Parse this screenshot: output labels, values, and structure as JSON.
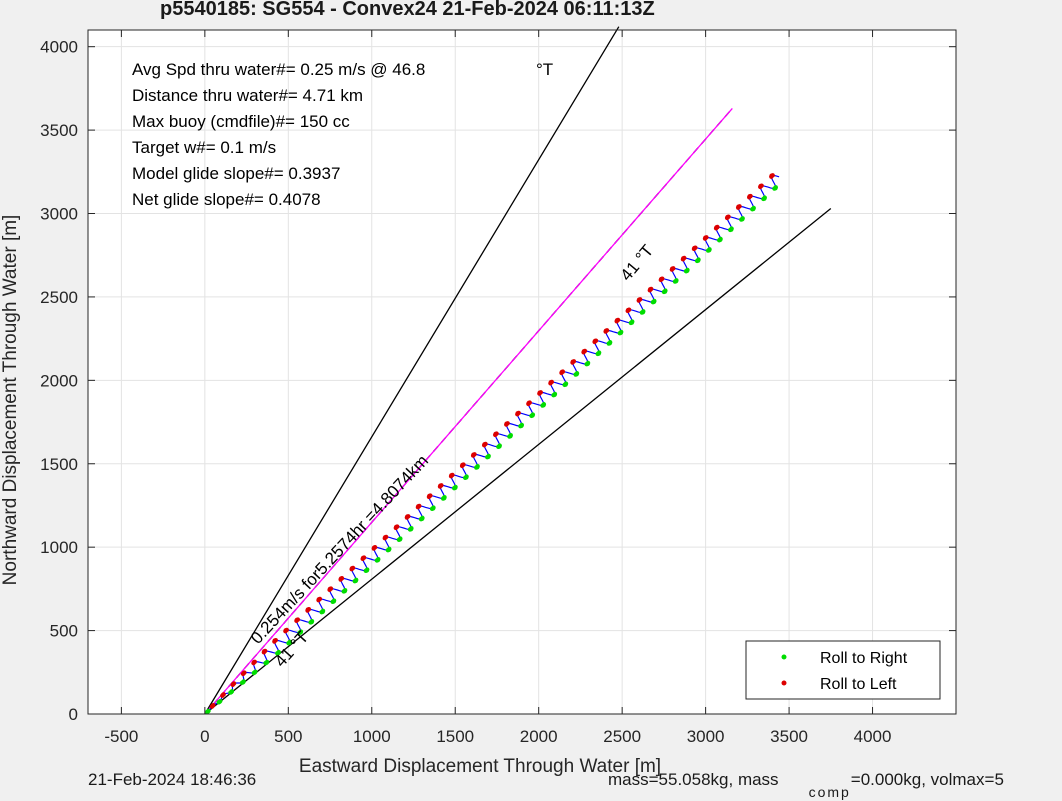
{
  "chart_data": {
    "type": "line",
    "title": "p5540185: SG554 - Convex24 21-Feb-2024 06:11:13Z",
    "xlabel": "Eastward Displacement Through Water [m]",
    "ylabel": "Northward Displacement Through Water [m]",
    "xlim": [
      -700,
      4500
    ],
    "ylim": [
      0,
      4100
    ],
    "xticks": [
      -500,
      0,
      500,
      1000,
      1500,
      2000,
      2500,
      3000,
      3500,
      4000
    ],
    "yticks": [
      0,
      500,
      1000,
      1500,
      2000,
      2500,
      3000,
      3500,
      4000
    ],
    "grid": true,
    "annotations": [
      "Avg Spd thru water#=  0.25 m/s @  46.8",
      "°T",
      "Distance thru water#=  4.71 km",
      "Max buoy (cmdfile)#= 150 cc",
      "Target w#= 0.1 m/s",
      "Model glide slope#= 0.3937",
      "Net glide slope#= 0.4078"
    ],
    "line_labels": [
      "0.254m/s for5.2574hr =4.8074km",
      "41 °T",
      "41 °T"
    ],
    "cone_lines": [
      {
        "x": [
          0,
          2480
        ],
        "y": [
          0,
          4120
        ]
      },
      {
        "x": [
          0,
          3750
        ],
        "y": [
          0,
          3030
        ]
      }
    ],
    "heading_line": {
      "color": "#ff00ff",
      "x": [
        0,
        3160
      ],
      "y": [
        0,
        3630
      ]
    },
    "track": {
      "name": "track",
      "color": "#0000ff",
      "start": [
        0,
        0
      ],
      "end": [
        3440,
        3220
      ],
      "dive_count": 52,
      "x_amplitude": 28,
      "y_amplitude": 22
    },
    "series": [
      {
        "name": "Roll to Right",
        "color": "#00dd00",
        "marker": "dot"
      },
      {
        "name": "Roll to Left",
        "color": "#dd0000",
        "marker": "dot"
      }
    ],
    "legend_position": "bottom-right"
  },
  "footer": {
    "timestamp": "21-Feb-2024 18:46:36",
    "mass_text": "mass=55.058kg, mass",
    "mass_sub": "comp",
    "mass_rest": "=0.000kg, volmax=5"
  }
}
